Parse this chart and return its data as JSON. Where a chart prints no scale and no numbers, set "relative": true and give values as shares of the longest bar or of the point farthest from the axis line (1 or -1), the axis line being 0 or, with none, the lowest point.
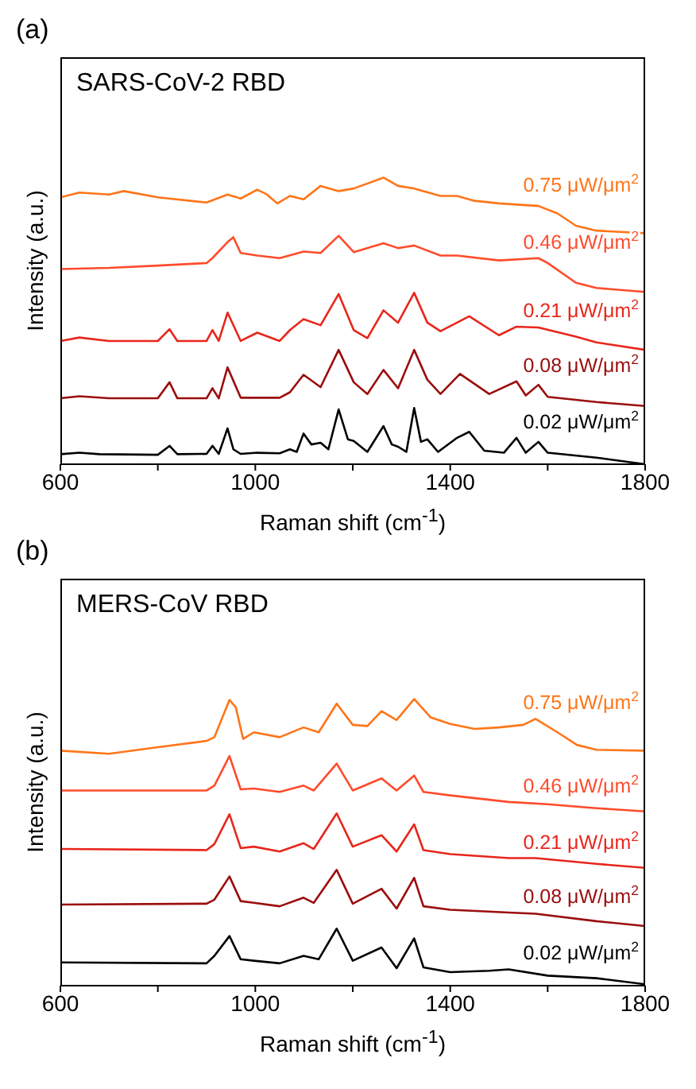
{
  "chart_data": [
    {
      "type": "line",
      "title": "(a)",
      "subtitle": "SARS-CoV-2 RBD",
      "xlabel": "Raman shift (cm$^{-1}$)",
      "ylabel": "Intensity (a.u.)",
      "relative": true,
      "legend": false,
      "grid": false,
      "marker": "none",
      "xlim": [
        600,
        1800
      ],
      "xticks": [
        600,
        {
          "value": 800,
          "label": null
        },
        1000,
        {
          "value": 1200,
          "label": null
        },
        1400,
        {
          "value": 1600,
          "label": null
        },
        1800
      ],
      "series": [
        {
          "name": "0.75 μW/μm$^{2}$",
          "color": "#ff7518",
          "x": [
            600,
            639,
            700,
            730,
            800,
            900,
            943,
            970,
            1004,
            1024,
            1045,
            1071,
            1099,
            1134,
            1171,
            1202,
            1263,
            1293,
            1326,
            1380,
            1414,
            1450,
            1500,
            1581,
            1620,
            1658,
            1700,
            1800
          ],
          "values": [
            0.931,
            0.948,
            0.941,
            0.953,
            0.931,
            0.913,
            0.941,
            0.927,
            0.958,
            0.941,
            0.91,
            0.936,
            0.924,
            0.971,
            0.953,
            0.962,
            1.0,
            0.971,
            0.962,
            0.936,
            0.936,
            0.919,
            0.91,
            0.901,
            0.875,
            0.832,
            0.815,
            0.806
          ]
        },
        {
          "name": "0.46 μW/μm$^{2}$",
          "color": "#ff4b2b",
          "x": [
            600,
            700,
            800,
            900,
            912,
            943,
            955,
            970,
            1004,
            1050,
            1099,
            1134,
            1171,
            1202,
            1263,
            1293,
            1326,
            1380,
            1414,
            1500,
            1581,
            1600,
            1658,
            1700,
            1800
          ],
          "values": [
            0.681,
            0.685,
            0.693,
            0.702,
            0.719,
            0.775,
            0.792,
            0.737,
            0.728,
            0.719,
            0.742,
            0.737,
            0.797,
            0.74,
            0.771,
            0.754,
            0.763,
            0.728,
            0.728,
            0.711,
            0.719,
            0.702,
            0.633,
            0.615,
            0.601
          ]
        },
        {
          "name": "0.21 μW/μm$^{2}$",
          "color": "#e8261c",
          "x": [
            600,
            639,
            700,
            800,
            824,
            840,
            900,
            912,
            925,
            943,
            970,
            1004,
            1050,
            1071,
            1099,
            1134,
            1171,
            1202,
            1230,
            1263,
            1293,
            1326,
            1353,
            1380,
            1439,
            1500,
            1536,
            1581,
            1658,
            1700,
            1800
          ],
          "values": [
            0.43,
            0.442,
            0.43,
            0.43,
            0.471,
            0.43,
            0.43,
            0.468,
            0.43,
            0.529,
            0.43,
            0.459,
            0.43,
            0.468,
            0.506,
            0.485,
            0.594,
            0.468,
            0.44,
            0.537,
            0.494,
            0.598,
            0.494,
            0.464,
            0.516,
            0.45,
            0.48,
            0.477,
            0.445,
            0.425,
            0.399
          ]
        },
        {
          "name": "0.08 μW/μm$^{2}$",
          "color": "#9b0d0d",
          "x": [
            600,
            639,
            700,
            800,
            824,
            840,
            900,
            912,
            925,
            943,
            970,
            1050,
            1071,
            1099,
            1134,
            1171,
            1202,
            1230,
            1263,
            1293,
            1326,
            1353,
            1380,
            1420,
            1480,
            1536,
            1555,
            1581,
            1600,
            1700,
            1800
          ],
          "values": [
            0.23,
            0.237,
            0.23,
            0.23,
            0.286,
            0.23,
            0.23,
            0.265,
            0.23,
            0.338,
            0.232,
            0.232,
            0.251,
            0.312,
            0.269,
            0.399,
            0.286,
            0.245,
            0.329,
            0.265,
            0.399,
            0.295,
            0.245,
            0.315,
            0.245,
            0.289,
            0.24,
            0.277,
            0.235,
            0.217,
            0.203
          ]
        },
        {
          "name": "0.02 μW/μm$^{2}$",
          "color": "#000000",
          "x": [
            600,
            639,
            680,
            800,
            824,
            840,
            900,
            912,
            925,
            943,
            955,
            970,
            1004,
            1050,
            1071,
            1085,
            1099,
            1115,
            1134,
            1150,
            1171,
            1190,
            1202,
            1230,
            1263,
            1280,
            1293,
            1310,
            1326,
            1340,
            1353,
            1375,
            1414,
            1439,
            1470,
            1510,
            1536,
            1555,
            1581,
            1600,
            1700,
            1800
          ],
          "values": [
            0.035,
            0.04,
            0.035,
            0.033,
            0.064,
            0.035,
            0.036,
            0.064,
            0.036,
            0.125,
            0.052,
            0.036,
            0.04,
            0.038,
            0.052,
            0.043,
            0.107,
            0.069,
            0.075,
            0.052,
            0.191,
            0.087,
            0.081,
            0.043,
            0.133,
            0.069,
            0.061,
            0.043,
            0.196,
            0.078,
            0.087,
            0.043,
            0.092,
            0.113,
            0.047,
            0.04,
            0.092,
            0.04,
            0.078,
            0.04,
            0.023,
            0
          ]
        }
      ]
    },
    {
      "type": "line",
      "title": "(b)",
      "subtitle": "MERS-CoV RBD",
      "xlabel": "Raman shift (cm$^{-1}$)",
      "ylabel": "Intensity (a.u.)",
      "relative": true,
      "legend": false,
      "grid": false,
      "marker": "none",
      "xlim": [
        600,
        1800
      ],
      "xticks": [
        600,
        {
          "value": 800,
          "label": null
        },
        1000,
        {
          "value": 1200,
          "label": null
        },
        1400,
        {
          "value": 1600,
          "label": null
        },
        1800
      ],
      "series": [
        {
          "name": "0.75 μW/μm$^{2}$",
          "color": "#ff7518",
          "x": [
            600,
            700,
            800,
            900,
            916,
            947,
            960,
            975,
            997,
            1050,
            1099,
            1130,
            1167,
            1200,
            1230,
            1259,
            1290,
            1326,
            1360,
            1400,
            1450,
            1500,
            1550,
            1575,
            1620,
            1660,
            1700,
            1800
          ],
          "values": [
            0.82,
            0.809,
            0.832,
            0.854,
            0.867,
            0.997,
            0.971,
            0.861,
            0.884,
            0.867,
            0.901,
            0.884,
            0.984,
            0.91,
            0.906,
            0.958,
            0.927,
            1.0,
            0.936,
            0.913,
            0.896,
            0.901,
            0.91,
            0.931,
            0.884,
            0.84,
            0.823,
            0.82
          ]
        },
        {
          "name": "0.46 μW/μm$^{2}$",
          "color": "#ff4b2b",
          "x": [
            600,
            900,
            916,
            947,
            970,
            997,
            1050,
            1099,
            1120,
            1167,
            1200,
            1259,
            1290,
            1326,
            1345,
            1400,
            1520,
            1600,
            1700,
            1800
          ],
          "values": [
            0.681,
            0.681,
            0.698,
            0.801,
            0.685,
            0.688,
            0.676,
            0.698,
            0.681,
            0.775,
            0.681,
            0.723,
            0.681,
            0.733,
            0.676,
            0.664,
            0.641,
            0.633,
            0.619,
            0.608
          ]
        },
        {
          "name": "0.21 μW/μm$^{2}$",
          "color": "#e8261c",
          "x": [
            600,
            900,
            916,
            947,
            970,
            997,
            1050,
            1099,
            1120,
            1167,
            1200,
            1259,
            1290,
            1326,
            1345,
            1400,
            1520,
            1575,
            1700,
            1800
          ],
          "values": [
            0.477,
            0.473,
            0.494,
            0.598,
            0.48,
            0.485,
            0.468,
            0.497,
            0.477,
            0.601,
            0.485,
            0.525,
            0.468,
            0.563,
            0.473,
            0.459,
            0.445,
            0.445,
            0.425,
            0.411
          ]
        },
        {
          "name": "0.08 μW/μm$^{2}$",
          "color": "#9b0d0d",
          "x": [
            600,
            900,
            916,
            947,
            970,
            997,
            1050,
            1099,
            1120,
            1167,
            1200,
            1259,
            1290,
            1326,
            1345,
            1400,
            1520,
            1575,
            1700,
            1800
          ],
          "values": [
            0.283,
            0.286,
            0.3,
            0.381,
            0.295,
            0.289,
            0.277,
            0.307,
            0.289,
            0.404,
            0.286,
            0.338,
            0.269,
            0.376,
            0.277,
            0.265,
            0.255,
            0.251,
            0.225,
            0.208
          ]
        },
        {
          "name": "0.02 μW/μm$^{2}$",
          "color": "#000000",
          "x": [
            600,
            900,
            916,
            947,
            970,
            997,
            1050,
            1099,
            1130,
            1167,
            1200,
            1259,
            1290,
            1326,
            1345,
            1400,
            1480,
            1520,
            1600,
            1700,
            1800
          ],
          "values": [
            0.081,
            0.078,
            0.104,
            0.173,
            0.092,
            0.087,
            0.078,
            0.104,
            0.092,
            0.199,
            0.087,
            0.133,
            0.061,
            0.165,
            0.064,
            0.047,
            0.052,
            0.057,
            0.035,
            0.026,
            0.005
          ]
        }
      ]
    }
  ]
}
